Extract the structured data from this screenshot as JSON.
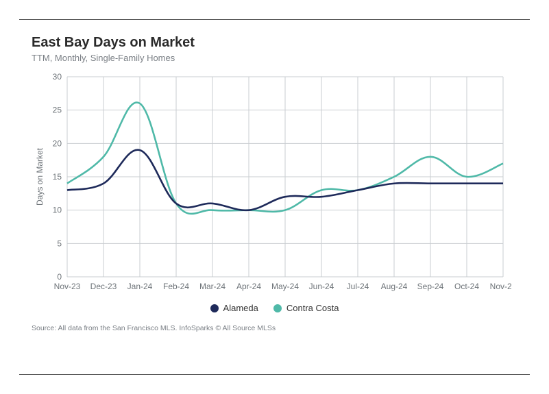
{
  "chart": {
    "type": "line",
    "title": "East Bay Days on Market",
    "subtitle": "TTM, Monthly, Single-Family Homes",
    "y_axis": {
      "label": "Days on Market",
      "min": 0,
      "max": 30,
      "tick_step": 5,
      "label_fontsize": 12,
      "label_color": "#6d7378"
    },
    "x_axis": {
      "categories": [
        "Nov-23",
        "Dec-23",
        "Jan-24",
        "Feb-24",
        "Mar-24",
        "Apr-24",
        "May-24",
        "Jun-24",
        "Jul-24",
        "Aug-24",
        "Sep-24",
        "Oct-24",
        "Nov-24"
      ],
      "label_fontsize": 12,
      "label_color": "#6d7378"
    },
    "grid_color": "#c9cdd1",
    "background_color": "#ffffff",
    "series": [
      {
        "name": "Alameda",
        "color": "#1e2a5a",
        "line_width": 2.6,
        "values": [
          13,
          14,
          19,
          11,
          11,
          10,
          12,
          12,
          13,
          14,
          14,
          14,
          14
        ]
      },
      {
        "name": "Contra Costa",
        "color": "#4fb9a8",
        "line_width": 2.6,
        "values": [
          14,
          18,
          26,
          11,
          10,
          10,
          10,
          13,
          13,
          15,
          18,
          15,
          17
        ]
      }
    ],
    "legend": {
      "position": "bottom",
      "marker": "circle",
      "fontsize": 13
    },
    "source_note": "Source:  All data from the San Francisco MLS. InfoSparks © All Source MLSs",
    "title_fontsize": 20,
    "subtitle_fontsize": 13,
    "title_color": "#2a2a2a",
    "subtitle_color": "#7a7f85"
  }
}
